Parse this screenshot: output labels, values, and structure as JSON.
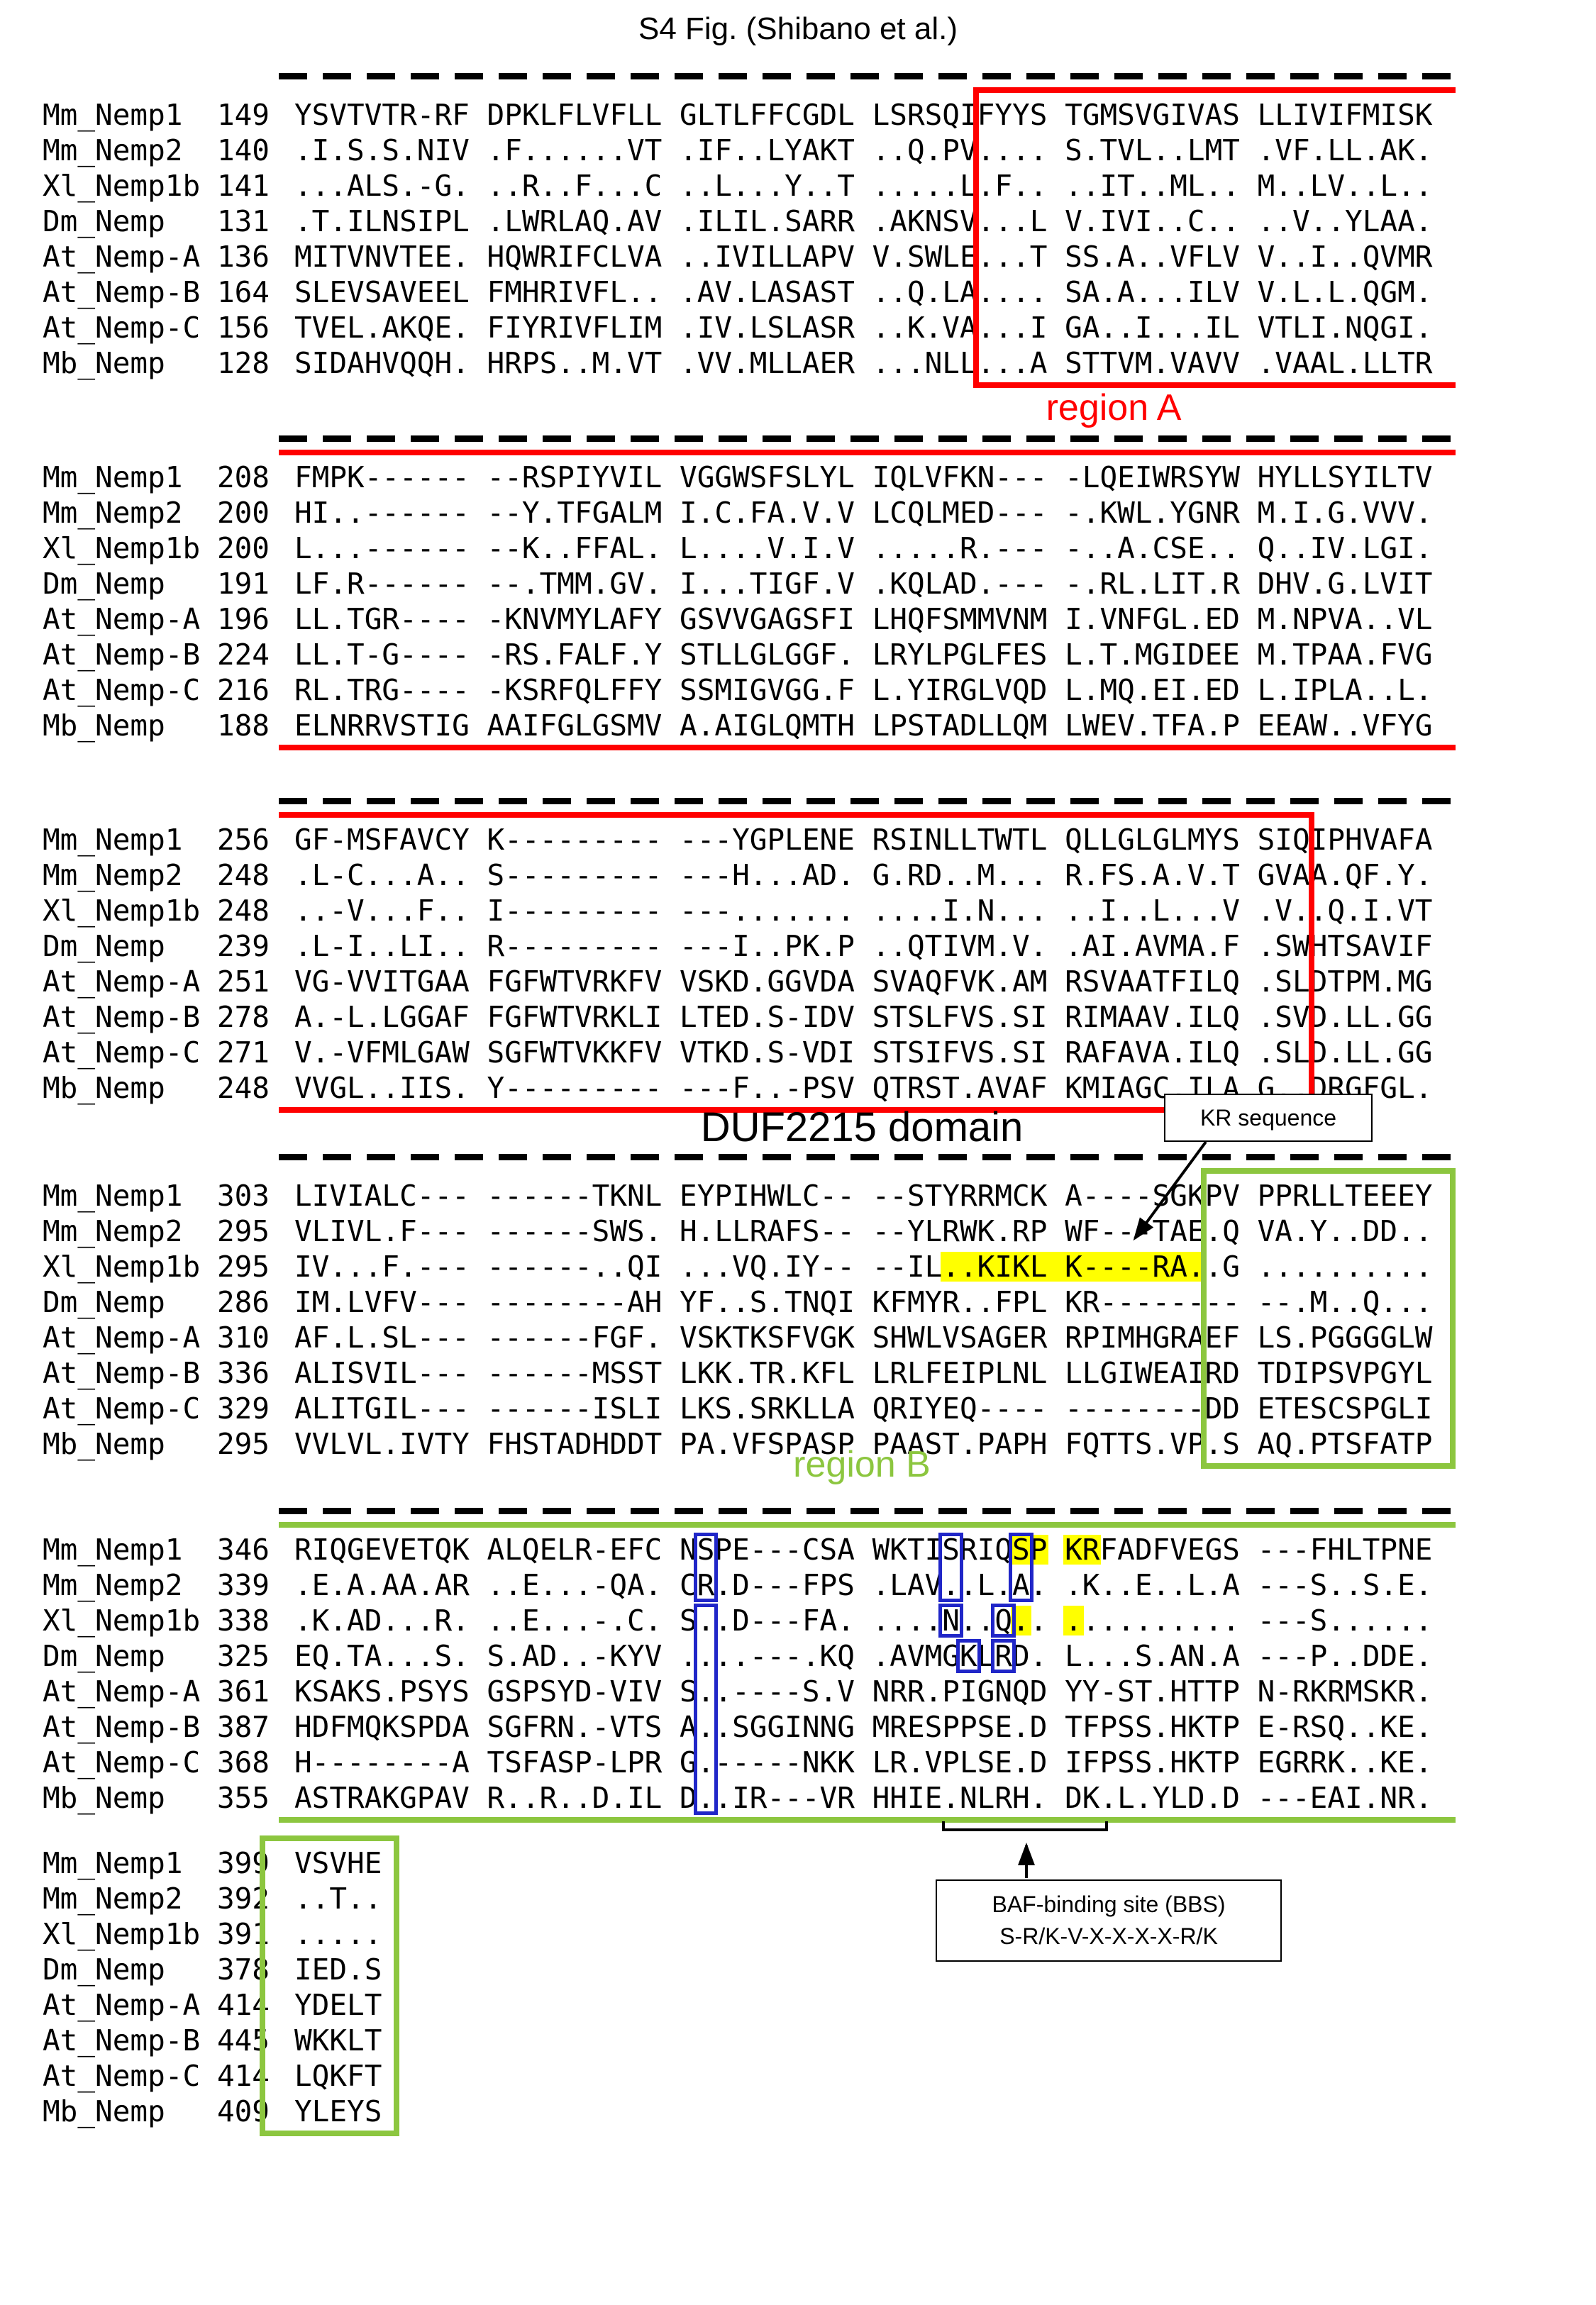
{
  "title": "S4 Fig. (Shibano et al.)",
  "labels": {
    "region_a": "region A",
    "region_b": "region B",
    "duf_domain": "DUF2215 domain",
    "kr_sequence": "KR sequence",
    "bbs_line1": "BAF-binding site (BBS)",
    "bbs_line2": "S-R/K-V-X-X-X-X-R/K"
  },
  "colors": {
    "region_a": "#ff0000",
    "region_b": "#8cc63f",
    "highlight": "#ffff00",
    "blue_box": "#2026c8",
    "dash": "#000000"
  },
  "alignment": {
    "row_names": [
      "Mm_Nemp1",
      "Mm_Nemp2",
      "Xl_Nemp1b",
      "Dm_Nemp",
      "At_Nemp-A",
      "At_Nemp-B",
      "At_Nemp-C",
      "Mb_Nemp"
    ],
    "blocks": [
      {
        "starts": [
          149,
          140,
          141,
          131,
          136,
          164,
          156,
          128
        ],
        "seqs": [
          "YSVTVTR-RF DPKLFLVFLL GLTLFFCGDL LSRSQIFYYS TGMSVGIVAS LLIVIFMISK",
          ".I.S.S.NIV .F......VT .IF..LYAKT ..Q.PV.... S.TVL..LMT .VF.LL.AK.",
          "...ALS.-G. ..R..F...C ..L...Y..T .....L.F.. ..IT..ML.. M..LV..L..",
          ".T.ILNSIPL .LWRLAQ.AV .ILIL.SARR .AKNSV...L V.IVI..C.. ..V..YLAA.",
          "MITVNVTEE. HQWRIFCLVA ..IVILLAPV V.SWLE...T SS.A..VFLV V..I..QVMR",
          "SLEVSAVEEL FMHRIVFL.. .AV.LASAST ..Q.LA.... SA.A...ILV V.L.L.QGM.",
          "TVEL.AKQE. FIYRIVFLIM .IV.LSLASR ..K.VA...I GA..I...IL VTLI.NQGI.",
          "SIDAHVQQH. HRPS..M.VT .VV.MLLAER ...NLL...A STTVM.VAVV .VAAL.LLTR"
        ]
      },
      {
        "starts": [
          208,
          200,
          200,
          191,
          196,
          224,
          216,
          188
        ],
        "seqs": [
          "FMPK------ --RSPIYVIL VGGWSFSLYL IQLVFKN--- -LQEIWRSYW HYLLSYILTV",
          "HI..------ --Y.TFGALM I.C.FA.V.V LCQLMED--- -.KWL.YGNR M.I.G.VVV.",
          "L...------ --K..FFAL. L....V.I.V .....R.--- -..A.CSE.. Q..IV.LGI.",
          "LF.R------ --.TMM.GV. I...TIGF.V .KQLAD.--- -.RL.LIT.R DHV.G.LVIT",
          "LL.TGR---- -KNVMYLAFY GSVVGAGSFI LHQFSMMVNM I.VNFGL.ED M.NPVA..VL",
          "LL.T-G---- -RS.FALF.Y STLLGLGGF. LRYLPGLFES L.T.MGIDEE M.TPAA.FVG",
          "RL.TRG---- -KSRFQLFFY SSMIGVGG.F L.YIRGLVQD L.MQ.EI.ED L.IPLA..L.",
          "ELNRRVSTIG AAIFGLGSMV A.AIGLQMTH LPSTADLLQM LWEV.TFA.P EEAW..VFYG"
        ]
      },
      {
        "starts": [
          256,
          248,
          248,
          239,
          251,
          278,
          271,
          248
        ],
        "seqs": [
          "GF-MSFAVCY K--------- ---YGPLENE RSINLLTWTL QLLGLGLMYS SIQIPHVAFA",
          ".L-C...A.. S--------- ---H...AD. G.RD..M... R.FS.A.V.T GVAA.QF.Y.",
          "..-V...F.. I--------- ---....... ....I.N... ..I..L...V .V..Q.I.VT",
          ".L-I..LI.. R--------- ---I..PK.P ..QTIVM.V. .AI.AVMA.F .SWHTSAVIF",
          "VG-VVITGAA FGFWTVRKFV VSKD.GGVDA SVAQFVK.AM RSVAATFILQ .SLDTPM.MG",
          "A.-L.LGGAF FGFWTVRKLI LTED.S-IDV STSLFVS.SI RIMAAV.ILQ .SVD.LL.GG",
          "V.-VFMLGAW SGFWTVKKFV VTKD.S-VDI STSIFVS.SI RAFAVA.ILQ .SLD.LL.GG",
          "VVGL..IIS. Y--------- ---F..-PSV QTRST.AVAF KMIAGC.ILA G..DRGFGL."
        ]
      },
      {
        "starts": [
          303,
          295,
          295,
          286,
          310,
          336,
          329,
          295
        ],
        "seqs": [
          "LIVIALC--- ------TKNL EYPIHWLC-- --STYRRMCK A----SGKPV PPRLLTEEEY",
          "VLIVL.F--- ------SWS. H.LLRAFS-- --YLRWK.RP WF---TAE.Q VA.Y..DD..",
          "IV...F.--- ------..QI ...VQ.IY-- --IL..KIKL K----RA..G ..........",
          "IM.LVFV--- --------AH YF..S.TNQI KFMYR..FPL KR-------- --.M..Q...",
          "AF.L.SL--- ------FGF. VSKTKSFVGK SHWLVSAGER RPIMHGRAEF LS.PGGGGLW",
          "ALISVIL--- ------MSST LKK.TR.KFL LRLFEIPLNL LLGIWEAIRD TDIPSVPGYL",
          "ALITGIL--- ------ISLI LKS.SRKLLA QRIYEQ---- --------DD ETESCSPGLI",
          "VVLVL.IVTY FHSTADHDDT PA.VFSPASP PAAST.PAPH FQTTS.VP.S AQ.PTSFATP"
        ]
      },
      {
        "starts": [
          346,
          339,
          338,
          325,
          361,
          387,
          368,
          355
        ],
        "seqs": [
          "RIQGEVETQK ALQELR-EFC NSPE---CSA WKTISRIQSP KRFADFVEGS ---FHLTPNE",
          ".E.A.AA.AR ..E...-QA. CR.D---FPS .LAV..L.A. .K..E..L.A ---S..S.E.",
          ".K.AD...R. ..E...-.C. S..D---FA. ....N..Q.. .......... ---S......",
          "EQ.TA...S. S.AD..-KYV ....---.KQ .AVMGKLRD. L...S.AN.A ---P..DDE.",
          "KSAKS.PSYS GSPSYD-VIV S..----S.V NRR.PIGNQD YY-ST.HTTP N-RKRMSKR.",
          "HDFMQKSPDA SGFRN.-VTS A..SGGINNG MRESPPSE.D TFPSS.HKTP E-RSQ..KE.",
          "H--------A TSFASP-LPR G.-----NKK LR.VPLSE.D IFPSS.HKTP EGRRK..KE.",
          "ASTRAKGPAV R..R..D.IL D..IR---VR HHIE.NLRH. DK.L.YLD.D ---EAI.NR."
        ]
      },
      {
        "starts": [
          399,
          392,
          391,
          378,
          414,
          445,
          414,
          409
        ],
        "seqs": [
          "VSVHE",
          "..T..",
          ".....",
          "IED.S",
          "YDELT",
          "WKKLT",
          "LQKFT",
          "YLEYS"
        ]
      }
    ]
  },
  "highlights": [
    {
      "block": 3,
      "row": 2,
      "from": 37,
      "to": 51
    },
    {
      "block": 4,
      "row": 0,
      "from": 41,
      "to": 42
    },
    {
      "block": 4,
      "row": 0,
      "from": 44,
      "to": 45
    },
    {
      "block": 4,
      "row": 2,
      "from": 41,
      "to": 41
    },
    {
      "block": 4,
      "row": 2,
      "from": 44,
      "to": 44
    }
  ],
  "blue_boxes": [
    {
      "block": 4,
      "col": 23,
      "row_from": 0,
      "row_to": 1
    },
    {
      "block": 4,
      "col": 23,
      "row_from": 2,
      "row_to": 7
    },
    {
      "block": 4,
      "col": 37,
      "row_from": 0,
      "row_to": 1
    },
    {
      "block": 4,
      "col": 41,
      "row_from": 0,
      "row_to": 1
    },
    {
      "block": 4,
      "col": 37,
      "row_from": 2,
      "row_to": 2
    },
    {
      "block": 4,
      "col": 40,
      "row_from": 2,
      "row_to": 2
    },
    {
      "block": 4,
      "col": 38,
      "row_from": 3,
      "row_to": 3
    },
    {
      "block": 4,
      "col": 40,
      "row_from": 3,
      "row_to": 3
    }
  ],
  "regions": [
    {
      "name": "region-a",
      "color": "#ff0000",
      "segments": [
        {
          "block": 0,
          "kind": "wrap_start",
          "col": 39
        },
        {
          "block": 1,
          "kind": "middle"
        },
        {
          "block": 2,
          "kind": "wrap_end",
          "col": 58
        }
      ]
    },
    {
      "name": "region-b",
      "color": "#8cc63f",
      "segments": [
        {
          "block": 3,
          "kind": "box_right",
          "col": 52
        },
        {
          "block": 4,
          "kind": "middle"
        },
        {
          "block": 5,
          "kind": "box_cols",
          "col_from": -2,
          "col_to": 6
        }
      ]
    }
  ],
  "dashed_above_blocks": [
    0,
    1,
    2,
    3,
    4
  ]
}
